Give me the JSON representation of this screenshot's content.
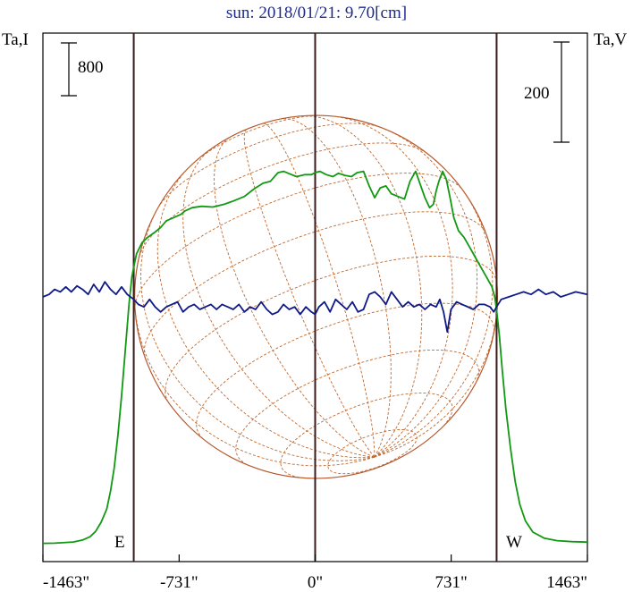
{
  "chart_data": {
    "type": "line",
    "title": "sun: 2018/01/21: 9.70[cm]",
    "left_axis_label": "Ta,I",
    "right_axis_label": "Ta,V",
    "left_scale_bar_label": "800",
    "right_scale_bar_label": "200",
    "left_scale_bar_value": 800,
    "right_scale_bar_value": 200,
    "limb_labels": {
      "east": "E",
      "west": "W"
    },
    "x_unit": "arcsec",
    "x_ticks": [
      {
        "value": -1463,
        "label": "-1463\""
      },
      {
        "value": -731,
        "label": "-731\""
      },
      {
        "value": 0,
        "label": "0\""
      },
      {
        "value": 731,
        "label": "731\""
      },
      {
        "value": 1463,
        "label": "1463\""
      }
    ],
    "xlim": [
      -1463,
      1463
    ],
    "solar_radius_arcsec": 975,
    "colors": {
      "intensity": "#119911",
      "polarization": "#0f1a85",
      "disk": "#b5562a",
      "grid": "#c06a30",
      "limb_lines": "#3a1a1a",
      "title": "#1c2a8c"
    },
    "series": [
      {
        "name": "Ta,I",
        "x": [
          -1463,
          -1400,
          -1300,
          -1250,
          -1210,
          -1180,
          -1150,
          -1120,
          -1100,
          -1080,
          -1060,
          -1040,
          -1020,
          -1000,
          -985,
          -975,
          -960,
          -930,
          -900,
          -860,
          -830,
          -800,
          -760,
          -720,
          -700,
          -660,
          -610,
          -550,
          -490,
          -440,
          -380,
          -330,
          -280,
          -240,
          -200,
          -170,
          -135,
          -100,
          -55,
          -20,
          0,
          25,
          60,
          95,
          125,
          160,
          195,
          225,
          260,
          290,
          320,
          350,
          380,
          410,
          445,
          480,
          510,
          540,
          565,
          590,
          615,
          635,
          650,
          665,
          685,
          705,
          725,
          745,
          770,
          800,
          830,
          860,
          890,
          920,
          950,
          965,
          975,
          990,
          1005,
          1025,
          1050,
          1075,
          1100,
          1130,
          1170,
          1230,
          1300,
          1380,
          1463
        ],
        "values": [
          60,
          62,
          80,
          110,
          160,
          240,
          380,
          580,
          850,
          1200,
          1700,
          2300,
          3000,
          3700,
          4100,
          4250,
          4450,
          4620,
          4700,
          4780,
          4850,
          4950,
          5000,
          5050,
          5100,
          5150,
          5170,
          5160,
          5200,
          5250,
          5320,
          5430,
          5520,
          5550,
          5680,
          5700,
          5660,
          5620,
          5650,
          5650,
          5680,
          5700,
          5650,
          5620,
          5670,
          5640,
          5620,
          5680,
          5700,
          5480,
          5300,
          5450,
          5480,
          5360,
          5320,
          5280,
          5550,
          5700,
          5500,
          5300,
          5150,
          5200,
          5400,
          5550,
          5700,
          5580,
          5300,
          5000,
          4800,
          4700,
          4550,
          4400,
          4250,
          4100,
          3950,
          3800,
          3600,
          3200,
          2700,
          2100,
          1500,
          1000,
          650,
          400,
          230,
          140,
          100,
          85,
          78
        ]
      },
      {
        "name": "Ta,V",
        "x": [
          -1463,
          -1430,
          -1400,
          -1370,
          -1340,
          -1310,
          -1280,
          -1250,
          -1220,
          -1190,
          -1160,
          -1130,
          -1100,
          -1070,
          -1040,
          -1010,
          -975,
          -950,
          -920,
          -890,
          -860,
          -830,
          -800,
          -770,
          -740,
          -710,
          -680,
          -650,
          -620,
          -590,
          -560,
          -530,
          -500,
          -470,
          -440,
          -410,
          -380,
          -350,
          -320,
          -290,
          -260,
          -230,
          -200,
          -170,
          -140,
          -110,
          -80,
          -50,
          -20,
          0,
          20,
          50,
          80,
          110,
          140,
          170,
          200,
          230,
          260,
          290,
          320,
          350,
          380,
          410,
          440,
          470,
          500,
          530,
          560,
          590,
          620,
          650,
          670,
          690,
          710,
          730,
          760,
          790,
          820,
          850,
          880,
          910,
          940,
          960,
          975,
          1000,
          1040,
          1080,
          1120,
          1160,
          1200,
          1240,
          1280,
          1320,
          1360,
          1400,
          1463
        ],
        "values": [
          0,
          5,
          15,
          10,
          20,
          10,
          22,
          15,
          5,
          25,
          10,
          30,
          15,
          5,
          20,
          5,
          -5,
          -15,
          -20,
          -5,
          -20,
          -30,
          -20,
          -15,
          -10,
          -30,
          -20,
          -15,
          -25,
          -20,
          -15,
          -25,
          -15,
          -20,
          -25,
          -15,
          -30,
          -20,
          -25,
          -10,
          -25,
          -35,
          -30,
          -15,
          -25,
          -20,
          -35,
          -20,
          -30,
          -35,
          -20,
          -10,
          -30,
          -5,
          -15,
          -25,
          -10,
          -30,
          -25,
          5,
          10,
          0,
          -15,
          10,
          -5,
          -20,
          -10,
          -20,
          -15,
          -25,
          -15,
          -20,
          -5,
          -30,
          -70,
          -25,
          -10,
          -15,
          -20,
          -25,
          -15,
          -15,
          -20,
          -30,
          -20,
          -5,
          0,
          5,
          10,
          5,
          15,
          5,
          10,
          0,
          5,
          10,
          5
        ]
      }
    ]
  }
}
